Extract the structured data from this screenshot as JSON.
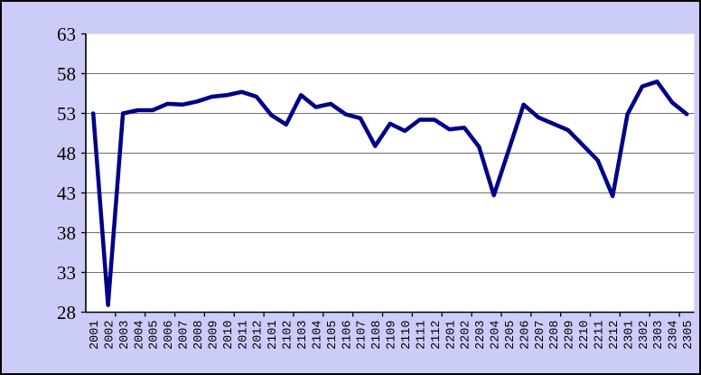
{
  "chart_data": {
    "type": "line",
    "title": "",
    "xlabel": "",
    "ylabel": "",
    "categories": [
      "2001",
      "2002",
      "2003",
      "2004",
      "2005",
      "2006",
      "2007",
      "2008",
      "2009",
      "2010",
      "2011",
      "2012",
      "2101",
      "2102",
      "2103",
      "2104",
      "2105",
      "2106",
      "2107",
      "2108",
      "2109",
      "2110",
      "2111",
      "2112",
      "2201",
      "2202",
      "2203",
      "2204",
      "2205",
      "2206",
      "2207",
      "2208",
      "2209",
      "2210",
      "2211",
      "2212",
      "2301",
      "2302",
      "2303",
      "2304",
      "2305"
    ],
    "values": [
      53.0,
      28.9,
      53.0,
      53.4,
      53.4,
      54.2,
      54.1,
      54.5,
      55.1,
      55.3,
      55.7,
      55.1,
      52.8,
      51.6,
      55.3,
      53.8,
      54.2,
      52.9,
      52.4,
      48.9,
      51.7,
      50.8,
      52.2,
      52.2,
      51.0,
      51.2,
      48.8,
      42.7,
      48.4,
      54.1,
      52.5,
      51.7,
      50.9,
      49.0,
      47.1,
      42.6,
      52.9,
      56.4,
      57.0,
      54.4,
      52.9
    ],
    "ylim": [
      28,
      63
    ],
    "yticks": [
      63,
      58,
      53,
      48,
      43,
      38,
      33,
      28
    ],
    "grid": "horizontal",
    "legend": "none",
    "colors": {
      "line": "#000088",
      "chart_background": "#CBCCF8",
      "plot_background": "#FFFFFF",
      "gridline": "#6E6E6E",
      "axis": "#000000",
      "outer_border": "#000000"
    }
  }
}
